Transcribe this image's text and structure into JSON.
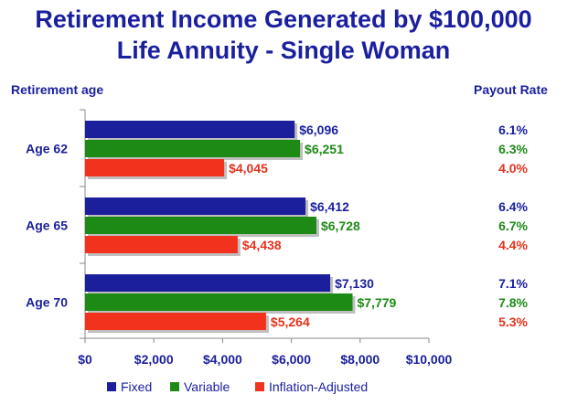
{
  "chart_data": {
    "type": "bar",
    "orientation": "horizontal",
    "title": [
      "Retirement Income Generated by $100,000",
      "Life Annuity - Single Woman"
    ],
    "ylabel": "Retirement age",
    "rate_label": "Payout Rate",
    "categories": [
      "Age 62",
      "Age 65",
      "Age 70"
    ],
    "series": [
      {
        "name": "Fixed",
        "color": "#1c1f9c",
        "label_color": "#1a1f9e",
        "values": [
          6096,
          6412,
          7130
        ],
        "value_labels": [
          "$6,096",
          "$6,412",
          "$7,130"
        ],
        "payout_rates": [
          "6.1%",
          "6.4%",
          "7.1%"
        ]
      },
      {
        "name": "Variable",
        "color": "#1e8a16",
        "label_color": "#1e8a16",
        "values": [
          6251,
          6728,
          7779
        ],
        "value_labels": [
          "$6,251",
          "$6,728",
          "$7,779"
        ],
        "payout_rates": [
          "6.3%",
          "6.7%",
          "7.8%"
        ]
      },
      {
        "name": "Inflation-Adjusted",
        "color": "#f2321c",
        "label_color": "#e3321c",
        "values": [
          4045,
          4438,
          5264
        ],
        "value_labels": [
          "$4,045",
          "$4,438",
          "$5,264"
        ],
        "payout_rates": [
          "4.0%",
          "4.4%",
          "5.3%"
        ]
      }
    ],
    "xlim": [
      0,
      10000
    ],
    "xticks": [
      0,
      2000,
      4000,
      6000,
      8000,
      10000
    ],
    "xtick_labels": [
      "$0",
      "$2,000",
      "$4,000",
      "$6,000",
      "$8,000",
      "$10,000"
    ],
    "grid": false,
    "legend": "bottom"
  }
}
